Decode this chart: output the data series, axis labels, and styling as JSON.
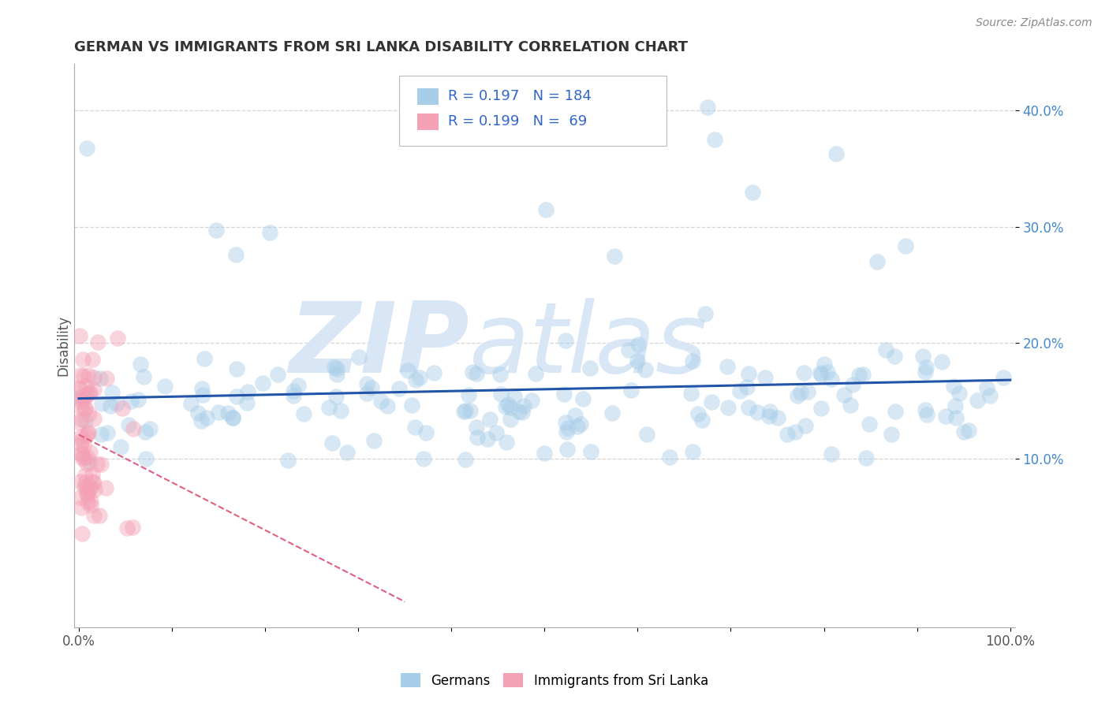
{
  "title": "GERMAN VS IMMIGRANTS FROM SRI LANKA DISABILITY CORRELATION CHART",
  "source_text": "Source: ZipAtlas.com",
  "ylabel": "Disability",
  "xlim": [
    -0.005,
    1.005
  ],
  "ylim": [
    -0.045,
    0.44
  ],
  "xticks": [
    0.0,
    0.1,
    0.2,
    0.3,
    0.4,
    0.5,
    0.6,
    0.7,
    0.8,
    0.9,
    1.0
  ],
  "yticks": [
    0.1,
    0.2,
    0.3,
    0.4
  ],
  "ytick_labels": [
    "10.0%",
    "20.0%",
    "30.0%",
    "40.0%"
  ],
  "xtick_labels_show": [
    "0.0%",
    "",
    "",
    "",
    "",
    "",
    "",
    "",
    "",
    "",
    "100.0%"
  ],
  "german_color": "#A8CDE8",
  "srilanka_color": "#F4A0B5",
  "german_line_color": "#2255AA",
  "srilanka_line_color": "#E06080",
  "german_R": 0.197,
  "german_N": 184,
  "srilanka_R": 0.199,
  "srilanka_N": 69,
  "watermark_zip": "ZIP",
  "watermark_atlas": "atlas",
  "watermark_color": "#D8E6F5",
  "background_color": "#FFFFFF",
  "grid_color": "#CCCCCC",
  "title_color": "#333333",
  "legend_label_1": "Germans",
  "legend_label_2": "Immigrants from Sri Lanka",
  "dot_size": 220,
  "dot_alpha": 0.45,
  "dot_linewidth": 0.0
}
